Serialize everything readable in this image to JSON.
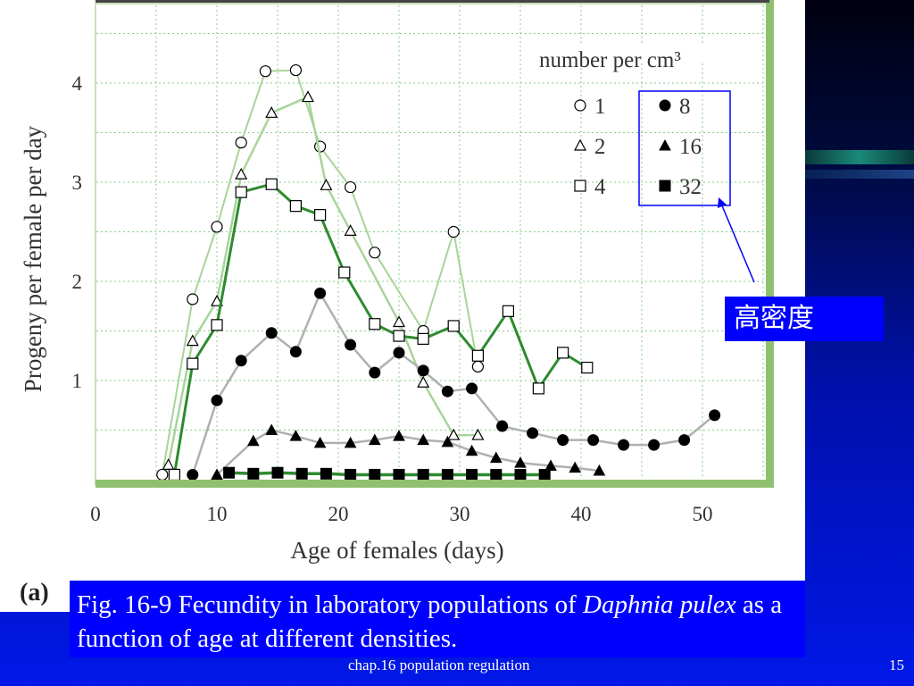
{
  "colors": {
    "slide_bg": "#0010a8",
    "caption_bg": "#0000ff",
    "plot_border": "#8fc070",
    "grid": "#88cc88",
    "bold_line": "#2e8b2e",
    "light_line": "#a8d49a",
    "gray_line": "#b0b0b0",
    "annotation_box": "#0000ff"
  },
  "chart_data": {
    "type": "line",
    "xlabel": "Age of females (days)",
    "ylabel": "Progeny per female per day",
    "xlim": [
      0,
      55
    ],
    "ylim": [
      0,
      4.5
    ],
    "x_ticks": [
      0,
      10,
      20,
      30,
      40,
      50
    ],
    "y_ticks": [
      1,
      2,
      3,
      4
    ],
    "grid": true,
    "legend_title": "number per cm³",
    "legend_placement": "top-right",
    "series": [
      {
        "name": "1",
        "marker": "circle-open",
        "points": [
          [
            5.5,
            0.05
          ],
          [
            8,
            1.82
          ],
          [
            10,
            2.55
          ],
          [
            12,
            3.4
          ],
          [
            14,
            4.12
          ],
          [
            16.5,
            4.13
          ],
          [
            18.5,
            3.36
          ],
          [
            21,
            2.95
          ],
          [
            23,
            2.29
          ],
          [
            27,
            1.5
          ],
          [
            29.5,
            2.5
          ],
          [
            31.5,
            1.14
          ]
        ]
      },
      {
        "name": "2",
        "marker": "triangle-open",
        "points": [
          [
            6,
            0.15
          ],
          [
            8,
            1.4
          ],
          [
            10,
            1.8
          ],
          [
            12,
            3.08
          ],
          [
            14.5,
            3.7
          ],
          [
            17.5,
            3.86
          ],
          [
            19,
            2.97
          ],
          [
            21,
            2.51
          ],
          [
            25,
            1.59
          ],
          [
            27,
            0.98
          ],
          [
            29.5,
            0.45
          ],
          [
            31.5,
            0.45
          ]
        ]
      },
      {
        "name": "4",
        "marker": "square-open",
        "points": [
          [
            6.5,
            0.05
          ],
          [
            8,
            1.17
          ],
          [
            10,
            1.56
          ],
          [
            12,
            2.9
          ],
          [
            14.5,
            2.98
          ],
          [
            16.5,
            2.76
          ],
          [
            18.5,
            2.67
          ],
          [
            20.5,
            2.09
          ],
          [
            23,
            1.57
          ],
          [
            25,
            1.45
          ],
          [
            27,
            1.42
          ],
          [
            29.5,
            1.55
          ],
          [
            31.5,
            1.25
          ],
          [
            34,
            1.7
          ],
          [
            36.5,
            0.92
          ],
          [
            38.5,
            1.28
          ],
          [
            40.5,
            1.13
          ]
        ]
      },
      {
        "name": "8",
        "marker": "circle-filled",
        "points": [
          [
            8,
            0.05
          ],
          [
            10,
            0.8
          ],
          [
            12,
            1.2
          ],
          [
            14.5,
            1.48
          ],
          [
            16.5,
            1.29
          ],
          [
            18.5,
            1.88
          ],
          [
            21,
            1.36
          ],
          [
            23,
            1.08
          ],
          [
            25,
            1.28
          ],
          [
            27,
            1.1
          ],
          [
            29,
            0.89
          ],
          [
            31,
            0.92
          ],
          [
            33.5,
            0.54
          ],
          [
            36,
            0.47
          ],
          [
            38.5,
            0.4
          ],
          [
            41,
            0.4
          ],
          [
            43.5,
            0.35
          ],
          [
            46,
            0.35
          ],
          [
            48.5,
            0.4
          ],
          [
            51,
            0.65
          ]
        ]
      },
      {
        "name": "16",
        "marker": "triangle-filled",
        "points": [
          [
            10,
            0.05
          ],
          [
            13,
            0.39
          ],
          [
            14.5,
            0.5
          ],
          [
            16.5,
            0.44
          ],
          [
            18.5,
            0.37
          ],
          [
            21,
            0.37
          ],
          [
            23,
            0.4
          ],
          [
            25,
            0.44
          ],
          [
            27,
            0.4
          ],
          [
            29,
            0.38
          ],
          [
            31,
            0.29
          ],
          [
            33,
            0.22
          ],
          [
            35,
            0.17
          ],
          [
            37.5,
            0.14
          ],
          [
            39.5,
            0.12
          ],
          [
            41.5,
            0.09
          ]
        ]
      },
      {
        "name": "32",
        "marker": "square-filled",
        "points": [
          [
            11,
            0.07
          ],
          [
            13,
            0.06
          ],
          [
            15,
            0.07
          ],
          [
            17,
            0.06
          ],
          [
            19,
            0.06
          ],
          [
            21,
            0.05
          ],
          [
            23,
            0.05
          ],
          [
            25,
            0.05
          ],
          [
            27,
            0.05
          ],
          [
            29,
            0.05
          ],
          [
            31,
            0.05
          ],
          [
            33,
            0.05
          ],
          [
            35,
            0.05
          ],
          [
            37,
            0.05
          ]
        ]
      }
    ]
  },
  "legend": {
    "title": "number per cm³",
    "items": [
      "1",
      "2",
      "4",
      "8",
      "16",
      "32"
    ]
  },
  "annotation": {
    "label": "高密度"
  },
  "panel_label": "(a)",
  "caption": {
    "prefix": "Fig. 16-9 Fecundity in laboratory populations of ",
    "species": "Daphnia pulex",
    "suffix": " as a function of age at different densities."
  },
  "footer": {
    "label": "chap.16 population regulation",
    "page": "15"
  }
}
